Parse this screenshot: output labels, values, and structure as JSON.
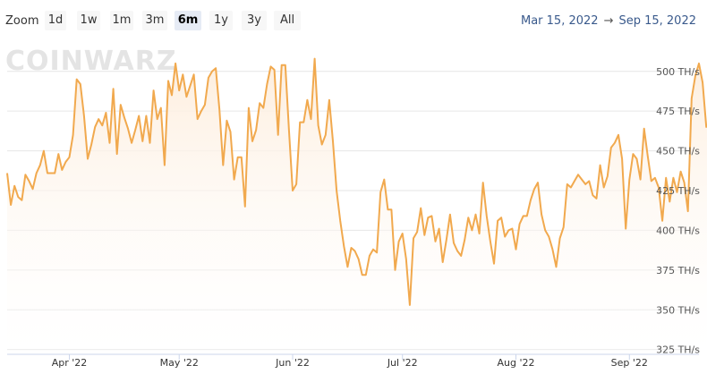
{
  "toolbar": {
    "zoom_label": "Zoom",
    "buttons": [
      "1d",
      "1w",
      "1m",
      "3m",
      "6m",
      "1y",
      "3y",
      "All"
    ],
    "active": "6m",
    "date_from": "Mar 15, 2022",
    "arrow": "→",
    "date_to": "Sep 15, 2022"
  },
  "watermark": {
    "text": "COINWARZ"
  },
  "colors": {
    "line": "#f1a94e",
    "area_top": "#fdeede",
    "grid": "#e6e6e6",
    "active_btn": "#e6ebf5"
  },
  "chart_data": {
    "type": "area",
    "title": "",
    "xlabel": "",
    "ylabel": "",
    "y_unit": "TH/s",
    "ylim": [
      322,
      510
    ],
    "xlim": [
      "2022-03-15",
      "2022-09-20"
    ],
    "grid": true,
    "y_ticks": [
      "325 TH/s",
      "350 TH/s",
      "375 TH/s",
      "400 TH/s",
      "425 TH/s",
      "450 TH/s",
      "475 TH/s",
      "500 TH/s"
    ],
    "x_ticks": [
      {
        "label": "Apr '22",
        "date": "2022-04-01"
      },
      {
        "label": "May '22",
        "date": "2022-05-01"
      },
      {
        "label": "Jun '22",
        "date": "2022-06-01"
      },
      {
        "label": "Jul '22",
        "date": "2022-07-01"
      },
      {
        "label": "Aug '22",
        "date": "2022-08-01"
      },
      {
        "label": "Sep '22",
        "date": "2022-09-01"
      }
    ],
    "series": [
      {
        "start": "2022-03-15",
        "step_days": 1,
        "values": [
          436,
          416,
          428,
          421,
          419,
          435,
          431,
          426,
          436,
          441,
          450,
          436,
          436,
          436,
          448,
          438,
          443,
          446,
          460,
          495,
          492,
          472,
          445,
          454,
          465,
          470,
          466,
          474,
          455,
          489,
          448,
          479,
          471,
          464,
          455,
          463,
          472,
          456,
          472,
          455,
          488,
          470,
          477,
          441,
          494,
          485,
          505,
          488,
          498,
          484,
          491,
          498,
          470,
          475,
          479,
          496,
          500,
          502,
          476,
          441,
          469,
          462,
          432,
          446,
          446,
          415,
          477,
          456,
          463,
          480,
          477,
          492,
          503,
          501,
          460,
          504,
          504,
          463,
          425,
          429,
          468,
          468,
          482,
          470,
          508,
          466,
          454,
          460,
          482,
          456,
          425,
          406,
          390,
          377,
          389,
          387,
          382,
          372,
          372,
          384,
          388,
          386,
          424,
          432,
          413,
          413,
          375,
          393,
          398,
          382,
          353,
          395,
          399,
          414,
          397,
          408,
          409,
          393,
          401,
          380,
          394,
          410,
          392,
          387,
          384,
          394,
          408,
          400,
          410,
          398,
          430,
          409,
          393,
          379,
          406,
          408,
          396,
          400,
          401,
          388,
          404,
          409,
          409,
          419,
          426,
          430,
          410,
          400,
          396,
          388,
          377,
          395,
          402,
          429,
          427,
          431,
          435,
          432,
          429,
          431,
          422,
          420,
          441,
          427,
          434,
          452,
          455,
          460,
          445,
          401,
          432,
          448,
          445,
          432,
          464,
          447,
          431,
          433,
          427,
          406,
          433,
          418,
          433,
          424,
          437,
          430,
          412,
          483,
          497,
          505,
          493,
          465,
          467,
          471,
          458
        ]
      }
    ]
  }
}
